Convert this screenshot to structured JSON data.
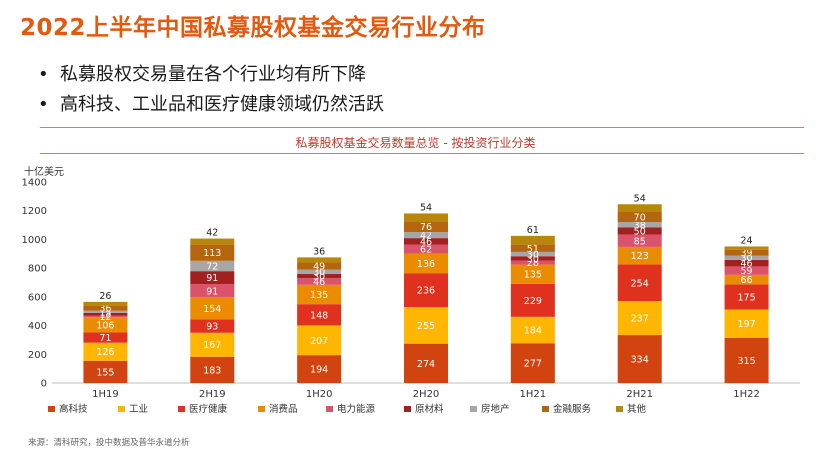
{
  "page": {
    "title": "2022上半年中国私募股权基金交易行业分布",
    "bullets": [
      "私募股权交易量在各个行业均有所下降",
      "高科技、工业品和医疗健康领域仍然活跃"
    ],
    "bullet_symbol": "•",
    "source": "来源：清科研究，投中数据及普华永道分析"
  },
  "chart_data": {
    "type": "bar",
    "stacked": true,
    "title": "私募股权基金交易数量总览 - 按投资行业分类",
    "ylabel": "十亿美元",
    "ylim": [
      0,
      1400
    ],
    "yticks": [
      0,
      200,
      400,
      600,
      800,
      1000,
      1200,
      1400
    ],
    "categories": [
      "1H19",
      "2H19",
      "1H20",
      "2H20",
      "1H21",
      "2H21",
      "1H22"
    ],
    "series": [
      {
        "name": "高科技",
        "color": "#d1430f",
        "values": [
          155,
          183,
          194,
          274,
          277,
          334,
          315
        ]
      },
      {
        "name": "工业",
        "color": "#ffb600",
        "values": [
          126,
          167,
          207,
          255,
          184,
          237,
          197
        ]
      },
      {
        "name": "医疗健康",
        "color": "#e0301e",
        "values": [
          71,
          93,
          148,
          236,
          229,
          254,
          175
        ]
      },
      {
        "name": "消费品",
        "color": "#eb8c00",
        "values": [
          106,
          154,
          135,
          136,
          135,
          123,
          66
        ]
      },
      {
        "name": "电力能源",
        "color": "#db536a",
        "values": [
          12,
          91,
          46,
          62,
          28,
          85,
          59
        ]
      },
      {
        "name": "原材料",
        "color": "#a32020",
        "values": [
          18,
          91,
          30,
          46,
          30,
          50,
          46
        ]
      },
      {
        "name": "房地产",
        "color": "#a6a6a6",
        "values": [
          15,
          72,
          30,
          42,
          30,
          38,
          30
        ]
      },
      {
        "name": "金融服务",
        "color": "#b5650d",
        "values": [
          36,
          113,
          49,
          76,
          51,
          70,
          39
        ]
      },
      {
        "name": "其他",
        "color": "#b8860b",
        "values": [
          26,
          42,
          36,
          54,
          61,
          54,
          24
        ]
      }
    ],
    "segment_labels": [
      [
        "155",
        "126",
        "71",
        "106",
        "12",
        "18",
        "15",
        "36",
        "26"
      ],
      [
        "183",
        "167",
        "93",
        "154",
        "91",
        "91",
        "72",
        "113",
        "42"
      ],
      [
        "194",
        "207",
        "148",
        "135",
        "46",
        "30",
        "30",
        "49",
        "36"
      ],
      [
        "274",
        "255",
        "236",
        "136",
        "62",
        "46",
        "42",
        "76",
        "54"
      ],
      [
        "277",
        "184",
        "229",
        "135",
        "28",
        "30",
        "30",
        "51",
        "61"
      ],
      [
        "334",
        "237",
        "254",
        "123",
        "85",
        "50",
        "38",
        "70",
        "54"
      ],
      [
        "315",
        "197",
        "175",
        "66",
        "59",
        "46",
        "30",
        "39",
        "24"
      ]
    ]
  }
}
